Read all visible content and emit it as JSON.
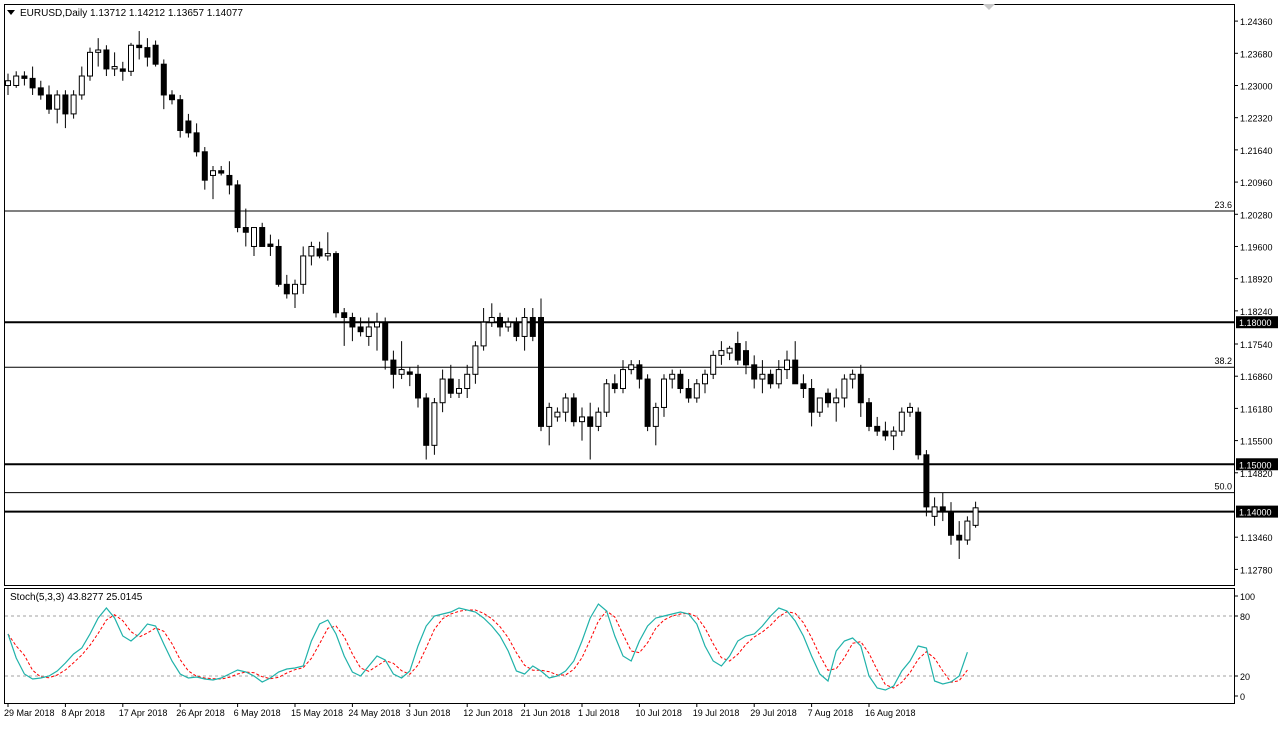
{
  "header": {
    "symbol": "EURUSD,Daily",
    "ohlc": "1.13712 1.14212 1.13657 1.14077",
    "menu_icon": "triangle-down-icon"
  },
  "indicator": {
    "label": "Stoch(5,3,3) 43.8277 25.0145",
    "levels": [
      80,
      20
    ],
    "axis_labels": [
      "100",
      "80",
      "20",
      "0"
    ],
    "main_color": "#20b2aa",
    "signal_color": "#ff0000"
  },
  "colors": {
    "background": "#ffffff",
    "bull_candle": "#ffffff",
    "bear_candle": "#000000",
    "tag_bg": "#000000",
    "tag_text": "#ffffff"
  },
  "chart_data": {
    "type": "candlestick",
    "ylim": [
      1.1245,
      1.247
    ],
    "yticks": [
      "1.24360",
      "1.23680",
      "1.23000",
      "1.22320",
      "1.21640",
      "1.20960",
      "1.20280",
      "1.19600",
      "1.18920",
      "1.18240",
      "1.17540",
      "1.16860",
      "1.16180",
      "1.15500",
      "1.14820",
      "1.13460",
      "1.12780"
    ],
    "xticks": [
      {
        "label": "29 Mar 2018",
        "index": 0
      },
      {
        "label": "8 Apr 2018",
        "index": 7
      },
      {
        "label": "17 Apr 2018",
        "index": 14
      },
      {
        "label": "26 Apr 2018",
        "index": 21
      },
      {
        "label": "6 May 2018",
        "index": 28
      },
      {
        "label": "15 May 2018",
        "index": 35
      },
      {
        "label": "24 May 2018",
        "index": 42
      },
      {
        "label": "3 Jun 2018",
        "index": 49
      },
      {
        "label": "12 Jun 2018",
        "index": 56
      },
      {
        "label": "21 Jun 2018",
        "index": 63
      },
      {
        "label": "1 Jul 2018",
        "index": 70
      },
      {
        "label": "10 Jul 2018",
        "index": 77
      },
      {
        "label": "19 Jul 2018",
        "index": 84
      },
      {
        "label": "29 Jul 2018",
        "index": 91
      },
      {
        "label": "7 Aug 2018",
        "index": 98
      },
      {
        "label": "16 Aug 2018",
        "index": 105
      }
    ],
    "hlines": [
      {
        "price": 1.2035,
        "label": "23.6",
        "kind": "fib"
      },
      {
        "price": 1.18,
        "label": "1.18000",
        "kind": "level"
      },
      {
        "price": 1.1705,
        "label": "38.2",
        "kind": "fib"
      },
      {
        "price": 1.15,
        "label": "1.15000",
        "kind": "level"
      },
      {
        "price": 1.144,
        "label": "50.0",
        "kind": "fib"
      },
      {
        "price": 1.14,
        "label": "1.14000",
        "kind": "level"
      }
    ],
    "candles": [
      [
        1.23,
        1.2325,
        1.228,
        1.231
      ],
      [
        1.23,
        1.233,
        1.2295,
        1.232
      ],
      [
        1.232,
        1.233,
        1.23,
        1.2315
      ],
      [
        1.2315,
        1.234,
        1.228,
        1.2295
      ],
      [
        1.2295,
        1.231,
        1.227,
        1.228
      ],
      [
        1.228,
        1.23,
        1.224,
        1.225
      ],
      [
        1.225,
        1.229,
        1.222,
        1.228
      ],
      [
        1.228,
        1.229,
        1.221,
        1.224
      ],
      [
        1.224,
        1.229,
        1.223,
        1.228
      ],
      [
        1.228,
        1.234,
        1.227,
        1.232
      ],
      [
        1.232,
        1.238,
        1.231,
        1.237
      ],
      [
        1.237,
        1.24,
        1.234,
        1.2375
      ],
      [
        1.2375,
        1.2385,
        1.232,
        1.2335
      ],
      [
        1.2335,
        1.237,
        1.232,
        1.234
      ],
      [
        1.2335,
        1.235,
        1.231,
        1.233
      ],
      [
        1.233,
        1.239,
        1.232,
        1.2385
      ],
      [
        1.2385,
        1.2415,
        1.2355,
        1.238
      ],
      [
        1.238,
        1.24,
        1.234,
        1.236
      ],
      [
        1.2385,
        1.2395,
        1.234,
        1.2345
      ],
      [
        1.2345,
        1.2355,
        1.225,
        1.228
      ],
      [
        1.228,
        1.229,
        1.226,
        1.227
      ],
      [
        1.227,
        1.228,
        1.219,
        1.2205
      ],
      [
        1.2225,
        1.224,
        1.219,
        1.22
      ],
      [
        1.22,
        1.222,
        1.215,
        1.216
      ],
      [
        1.216,
        1.217,
        1.208,
        1.21
      ],
      [
        1.211,
        1.213,
        1.206,
        1.212
      ],
      [
        1.212,
        1.213,
        1.211,
        1.2115
      ],
      [
        1.211,
        1.214,
        1.207,
        1.209
      ],
      [
        1.209,
        1.21,
        1.199,
        1.2
      ],
      [
        1.2,
        1.204,
        1.196,
        1.199
      ],
      [
        1.196,
        1.2,
        1.194,
        1.2
      ],
      [
        1.2,
        1.201,
        1.196,
        1.196
      ],
      [
        1.1965,
        1.1985,
        1.194,
        1.196
      ],
      [
        1.196,
        1.1975,
        1.1875,
        1.188
      ],
      [
        1.188,
        1.19,
        1.185,
        1.186
      ],
      [
        1.186,
        1.189,
        1.183,
        1.188
      ],
      [
        1.188,
        1.196,
        1.186,
        1.194
      ],
      [
        1.194,
        1.197,
        1.192,
        1.196
      ],
      [
        1.1955,
        1.197,
        1.1935,
        1.194
      ],
      [
        1.194,
        1.199,
        1.193,
        1.1945
      ],
      [
        1.1945,
        1.195,
        1.181,
        1.182
      ],
      [
        1.182,
        1.183,
        1.175,
        1.181
      ],
      [
        1.181,
        1.182,
        1.176,
        1.179
      ],
      [
        1.179,
        1.181,
        1.177,
        1.178
      ],
      [
        1.177,
        1.181,
        1.175,
        1.179
      ],
      [
        1.179,
        1.182,
        1.174,
        1.18
      ],
      [
        1.18,
        1.181,
        1.17,
        1.172
      ],
      [
        1.172,
        1.174,
        1.166,
        1.169
      ],
      [
        1.169,
        1.176,
        1.168,
        1.17
      ],
      [
        1.1695,
        1.1705,
        1.1665,
        1.169
      ],
      [
        1.169,
        1.171,
        1.162,
        1.164
      ],
      [
        1.164,
        1.165,
        1.151,
        1.154
      ],
      [
        1.154,
        1.164,
        1.152,
        1.163
      ],
      [
        1.163,
        1.17,
        1.161,
        1.168
      ],
      [
        1.168,
        1.171,
        1.164,
        1.165
      ],
      [
        1.165,
        1.168,
        1.164,
        1.166
      ],
      [
        1.166,
        1.171,
        1.164,
        1.169
      ],
      [
        1.169,
        1.176,
        1.167,
        1.175
      ],
      [
        1.175,
        1.183,
        1.174,
        1.18
      ],
      [
        1.18,
        1.184,
        1.179,
        1.181
      ],
      [
        1.181,
        1.182,
        1.177,
        1.179
      ],
      [
        1.179,
        1.181,
        1.178,
        1.18
      ],
      [
        1.18,
        1.181,
        1.176,
        1.177
      ],
      [
        1.177,
        1.183,
        1.174,
        1.181
      ],
      [
        1.181,
        1.183,
        1.176,
        1.177
      ],
      [
        1.181,
        1.185,
        1.157,
        1.158
      ],
      [
        1.158,
        1.163,
        1.154,
        1.162
      ],
      [
        1.16,
        1.162,
        1.159,
        1.161
      ],
      [
        1.161,
        1.165,
        1.159,
        1.164
      ],
      [
        1.164,
        1.165,
        1.158,
        1.159
      ],
      [
        1.159,
        1.162,
        1.155,
        1.16
      ],
      [
        1.16,
        1.163,
        1.151,
        1.158
      ],
      [
        1.158,
        1.162,
        1.157,
        1.161
      ],
      [
        1.161,
        1.168,
        1.16,
        1.167
      ],
      [
        1.167,
        1.169,
        1.165,
        1.166
      ],
      [
        1.166,
        1.172,
        1.165,
        1.17
      ],
      [
        1.17,
        1.172,
        1.169,
        1.171
      ],
      [
        1.171,
        1.172,
        1.166,
        1.168
      ],
      [
        1.168,
        1.169,
        1.157,
        1.158
      ],
      [
        1.158,
        1.163,
        1.154,
        1.162
      ],
      [
        1.162,
        1.169,
        1.16,
        1.168
      ],
      [
        1.168,
        1.17,
        1.166,
        1.169
      ],
      [
        1.169,
        1.17,
        1.165,
        1.166
      ],
      [
        1.166,
        1.168,
        1.163,
        1.164
      ],
      [
        1.164,
        1.168,
        1.163,
        1.167
      ],
      [
        1.167,
        1.17,
        1.165,
        1.169
      ],
      [
        1.169,
        1.174,
        1.168,
        1.173
      ],
      [
        1.173,
        1.176,
        1.171,
        1.174
      ],
      [
        1.1735,
        1.175,
        1.172,
        1.1745
      ],
      [
        1.1755,
        1.178,
        1.171,
        1.172
      ],
      [
        1.174,
        1.176,
        1.169,
        1.171
      ],
      [
        1.171,
        1.173,
        1.166,
        1.168
      ],
      [
        1.168,
        1.172,
        1.165,
        1.169
      ],
      [
        1.169,
        1.17,
        1.166,
        1.167
      ],
      [
        1.167,
        1.172,
        1.166,
        1.17
      ],
      [
        1.17,
        1.174,
        1.168,
        1.172
      ],
      [
        1.172,
        1.176,
        1.168,
        1.167
      ],
      [
        1.167,
        1.169,
        1.164,
        1.166
      ],
      [
        1.166,
        1.168,
        1.158,
        1.161
      ],
      [
        1.161,
        1.164,
        1.16,
        1.164
      ],
      [
        1.165,
        1.166,
        1.162,
        1.163
      ],
      [
        1.163,
        1.166,
        1.159,
        1.164
      ],
      [
        1.164,
        1.169,
        1.162,
        1.168
      ],
      [
        1.168,
        1.17,
        1.166,
        1.169
      ],
      [
        1.169,
        1.171,
        1.16,
        1.163
      ],
      [
        1.163,
        1.164,
        1.157,
        1.158
      ],
      [
        1.158,
        1.16,
        1.156,
        1.157
      ],
      [
        1.157,
        1.159,
        1.155,
        1.156
      ],
      [
        1.156,
        1.158,
        1.153,
        1.157
      ],
      [
        1.157,
        1.162,
        1.156,
        1.161
      ],
      [
        1.161,
        1.163,
        1.16,
        1.162
      ],
      [
        1.161,
        1.162,
        1.151,
        1.152
      ],
      [
        1.152,
        1.153,
        1.139,
        1.141
      ],
      [
        1.139,
        1.143,
        1.137,
        1.141
      ],
      [
        1.141,
        1.144,
        1.138,
        1.14
      ],
      [
        1.14,
        1.142,
        1.133,
        1.135
      ],
      [
        1.135,
        1.138,
        1.13,
        1.134
      ],
      [
        1.134,
        1.139,
        1.133,
        1.138
      ],
      [
        1.1371,
        1.1421,
        1.1366,
        1.1408
      ]
    ],
    "stoch_main": [
      62,
      38,
      22,
      17,
      18,
      20,
      25,
      33,
      42,
      48,
      62,
      78,
      88,
      78,
      60,
      55,
      62,
      72,
      70,
      52,
      35,
      22,
      18,
      19,
      17,
      16,
      18,
      22,
      26,
      24,
      20,
      14,
      18,
      24,
      27,
      28,
      30,
      55,
      72,
      76,
      62,
      40,
      24,
      20,
      30,
      40,
      36,
      22,
      18,
      25,
      50,
      70,
      80,
      82,
      84,
      88,
      86,
      84,
      78,
      70,
      60,
      45,
      25,
      22,
      30,
      25,
      18,
      20,
      25,
      35,
      55,
      78,
      92,
      85,
      60,
      40,
      35,
      55,
      70,
      78,
      80,
      82,
      84,
      82,
      72,
      50,
      35,
      30,
      40,
      55,
      60,
      62,
      70,
      80,
      88,
      85,
      75,
      60,
      40,
      22,
      15,
      45,
      55,
      58,
      50,
      20,
      8,
      6,
      10,
      25,
      35,
      50,
      48,
      15,
      12,
      14,
      20,
      43.8
    ]
  }
}
